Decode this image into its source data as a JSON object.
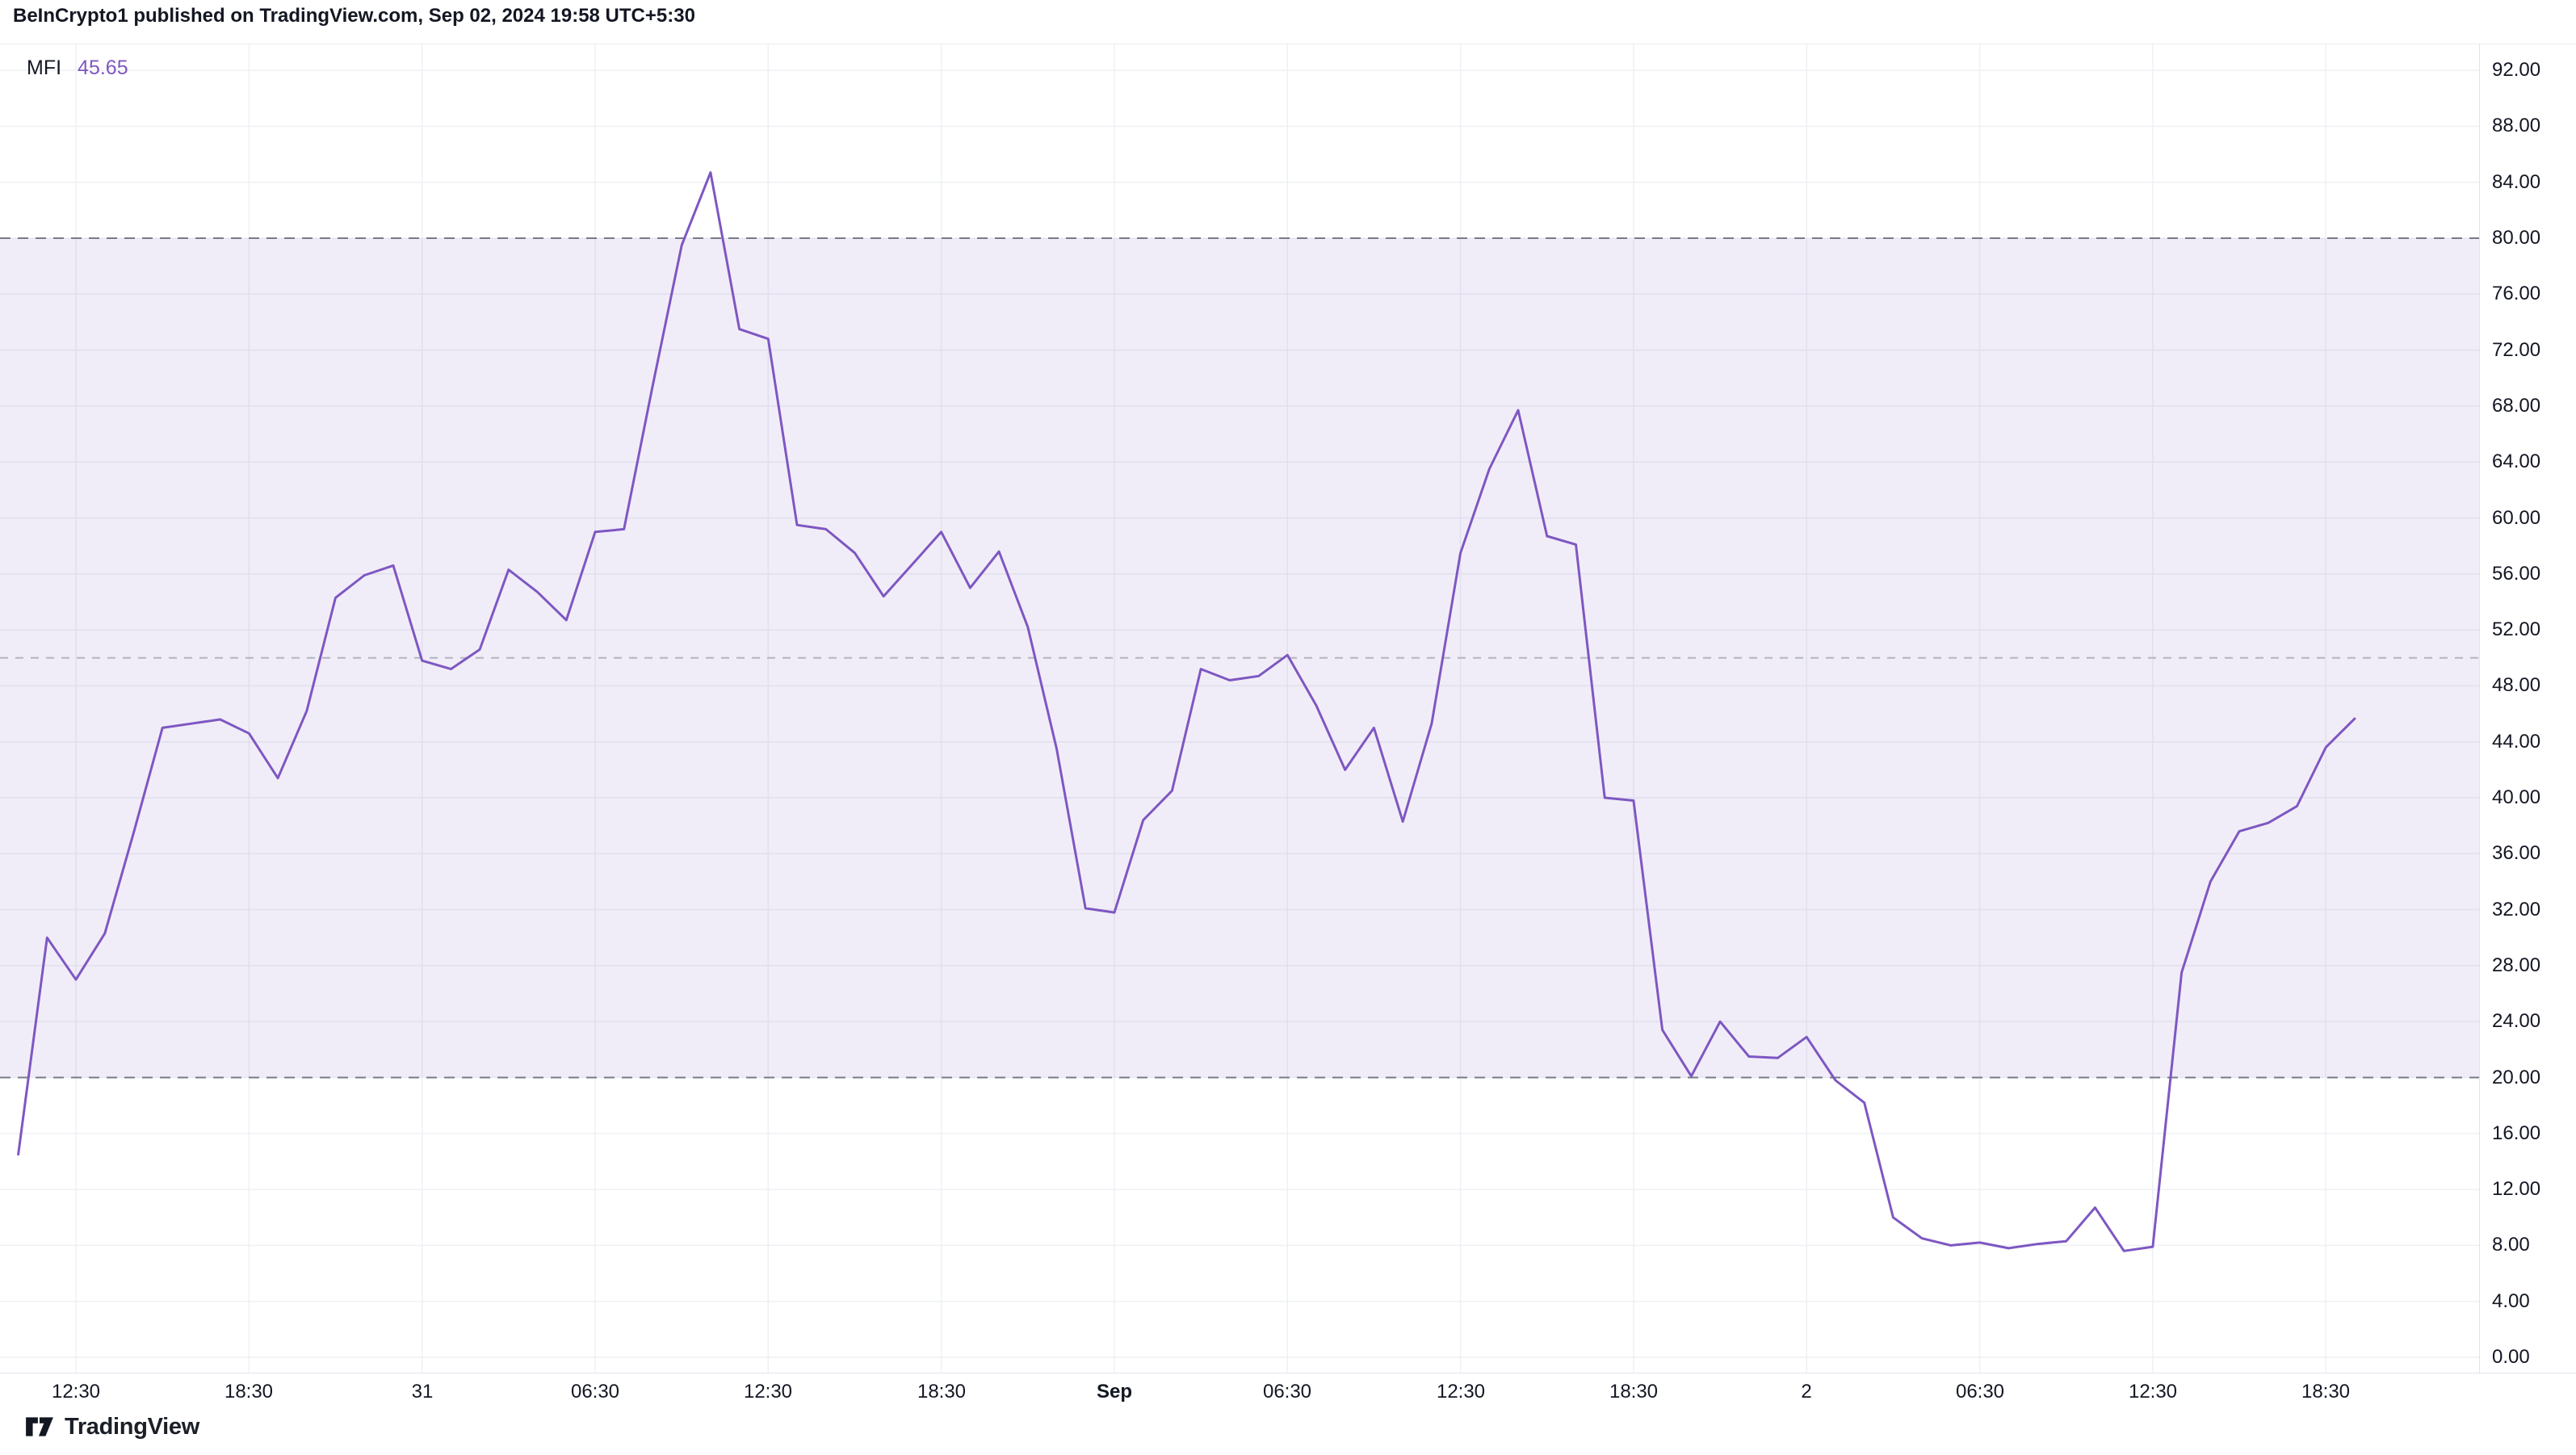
{
  "header": {
    "attribution": "BeInCrypto1 published on TradingView.com, Sep 02, 2024 19:58 UTC+5:30"
  },
  "legend": {
    "indicator": "MFI",
    "value": "45.65",
    "value_color": "#7E57C2"
  },
  "footer": {
    "brand": "TradingView"
  },
  "chart_data": {
    "type": "line",
    "title": "MFI (Money Flow Index) indicator line, hourly",
    "legend_position": "top-left",
    "grid": true,
    "series": [
      {
        "name": "MFI",
        "color": "#7E57C2",
        "values": [
          14.5,
          30.0,
          27.0,
          30.3,
          37.5,
          45.0,
          45.3,
          45.6,
          44.6,
          41.4,
          46.2,
          54.3,
          55.9,
          56.6,
          49.8,
          49.2,
          50.6,
          56.3,
          54.7,
          52.7,
          59.0,
          59.2,
          69.5,
          79.5,
          84.7,
          73.5,
          72.8,
          59.5,
          59.2,
          57.5,
          54.4,
          56.7,
          59.0,
          55.0,
          57.6,
          52.2,
          43.5,
          32.1,
          31.8,
          38.4,
          40.5,
          49.2,
          48.4,
          48.7,
          50.2,
          46.6,
          42.0,
          45.0,
          38.3,
          45.3,
          57.5,
          63.5,
          67.7,
          58.7,
          58.1,
          40.0,
          39.8,
          23.4,
          20.1,
          24.0,
          21.5,
          21.4,
          22.9,
          19.8,
          18.2,
          10.0,
          8.5,
          8.0,
          8.2,
          7.8,
          8.1,
          8.3,
          10.7,
          7.6,
          7.9,
          27.5,
          34.0,
          37.6,
          38.2,
          39.4,
          43.6,
          45.65
        ]
      }
    ],
    "x_axis": {
      "labels": [
        {
          "text": "12:30",
          "bar": 2,
          "bold": false
        },
        {
          "text": "18:30",
          "bar": 8,
          "bold": false
        },
        {
          "text": "31",
          "bar": 14,
          "bold": false
        },
        {
          "text": "06:30",
          "bar": 20,
          "bold": false
        },
        {
          "text": "12:30",
          "bar": 26,
          "bold": false
        },
        {
          "text": "18:30",
          "bar": 32,
          "bold": false
        },
        {
          "text": "Sep",
          "bar": 38,
          "bold": true
        },
        {
          "text": "06:30",
          "bar": 44,
          "bold": false
        },
        {
          "text": "12:30",
          "bar": 50,
          "bold": false
        },
        {
          "text": "18:30",
          "bar": 56,
          "bold": false
        },
        {
          "text": "2",
          "bar": 62,
          "bold": false
        },
        {
          "text": "06:30",
          "bar": 68,
          "bold": false
        },
        {
          "text": "12:30",
          "bar": 74,
          "bold": false
        },
        {
          "text": "18:30",
          "bar": 80,
          "bold": false
        }
      ]
    },
    "y_axis": {
      "min": 0,
      "max": 92,
      "step": 4,
      "tick_labels": [
        "92.00",
        "88.00",
        "84.00",
        "80.00",
        "76.00",
        "72.00",
        "68.00",
        "64.00",
        "60.00",
        "56.00",
        "52.00",
        "48.00",
        "44.00",
        "40.00",
        "36.00",
        "32.00",
        "28.00",
        "24.00",
        "20.00",
        "16.00",
        "12.00",
        "8.00",
        "4.00",
        "0.00"
      ]
    },
    "hlines": {
      "overbought": 80,
      "middle": 50,
      "oversold": 20,
      "line_color": "#787b86",
      "middle_line_color": "#b2b5bd"
    },
    "band": {
      "from": 20,
      "to": 80,
      "color": "rgba(126,87,194,0.11)"
    }
  }
}
